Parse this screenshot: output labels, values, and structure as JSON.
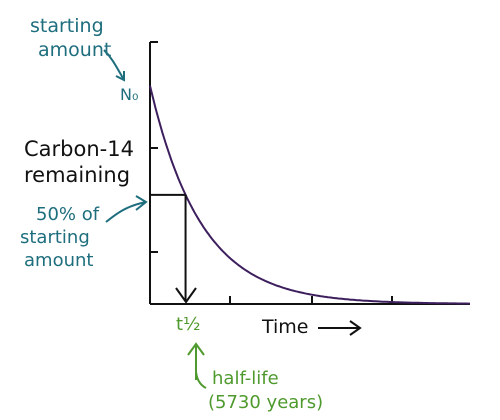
{
  "chart_data": {
    "type": "line",
    "ylabel": [
      "Carbon-14",
      "remaining"
    ],
    "xlabel": "Time",
    "y_start_label": "N₀",
    "y_start_annotation": [
      "starting",
      "amount"
    ],
    "half_annotation": [
      "50% of",
      "starting",
      "amount"
    ],
    "x_half_label": "t½",
    "x_half_annotation": [
      "half-life",
      "(5730 years)"
    ],
    "series": [
      {
        "values_description": "exponential decay",
        "x": [
          0,
          0.5,
          1,
          1.5,
          2,
          2.5,
          3,
          3.5,
          4,
          4.5,
          5,
          5.5,
          6,
          6.5,
          7,
          7.5,
          8,
          8.5,
          9
        ],
        "y": [
          1.0,
          0.707,
          0.5,
          0.354,
          0.25,
          0.177,
          0.125,
          0.088,
          0.0625,
          0.044,
          0.031,
          0.022,
          0.016,
          0.011,
          0.008,
          0.006,
          0.004,
          0.003,
          0.002
        ]
      }
    ],
    "xlim": [
      0,
      9
    ],
    "ylim": [
      0,
      1.2
    ],
    "grid": false,
    "colors": {
      "curve": "#3d1f5e",
      "annotation_teal": "#1e6e7e",
      "annotation_green": "#4f9a2e",
      "axes": "#111111"
    }
  }
}
